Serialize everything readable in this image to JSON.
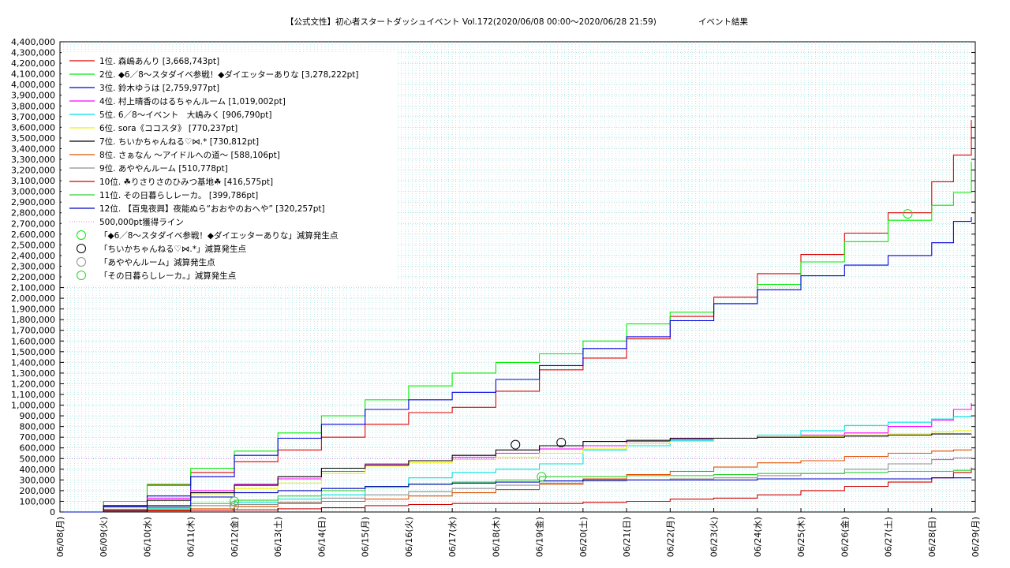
{
  "chart_data": {
    "type": "line",
    "title": "【公式文性】初心者スタートダッシュイベント Vol.172(2020/06/08 00:00～2020/06/28 21:59)",
    "subtitle": "イベント結果",
    "xlabel": "",
    "ylabel": "",
    "x_ticks": [
      "06/08(月)",
      "06/09(火)",
      "06/10(水)",
      "06/11(木)",
      "06/12(金)",
      "06/13(土)",
      "06/14(日)",
      "06/15(月)",
      "06/16(火)",
      "06/17(水)",
      "06/18(木)",
      "06/19(金)",
      "06/20(土)",
      "06/21(日)",
      "06/22(月)",
      "06/23(火)",
      "06/24(水)",
      "06/25(木)",
      "06/26(金)",
      "06/27(土)",
      "06/28(日)",
      "06/29(月)"
    ],
    "x_range_days": [
      0,
      21
    ],
    "ylim": [
      0,
      4400000
    ],
    "y_tick_step": 100000,
    "y_tick_labels": [
      "0",
      "100,000",
      "200,000",
      "300,000",
      "400,000",
      "500,000",
      "600,000",
      "700,000",
      "800,000",
      "900,000",
      "1,000,000",
      "1,100,000",
      "1,200,000",
      "1,300,000",
      "1,400,000",
      "1,500,000",
      "1,600,000",
      "1,700,000",
      "1,800,000",
      "1,900,000",
      "2,000,000",
      "2,100,000",
      "2,200,000",
      "2,300,000",
      "2,400,000",
      "2,500,000",
      "2,600,000",
      "2,700,000",
      "2,800,000",
      "2,900,000",
      "3,000,000",
      "3,100,000",
      "3,200,000",
      "3,300,000",
      "3,400,000",
      "3,500,000",
      "3,600,000",
      "3,700,000",
      "3,800,000",
      "3,900,000",
      "4,000,000",
      "4,100,000",
      "4,200,000",
      "4,300,000",
      "4,400,000"
    ],
    "grid": true,
    "legend_position": "top-left",
    "series": [
      {
        "name": "1位. 森嶋あんり [3,668,743pt]",
        "color": "#e00000",
        "x": [
          0,
          1,
          2,
          3,
          4,
          5,
          6,
          7,
          8,
          9,
          10,
          11,
          12,
          13,
          14,
          15,
          16,
          17,
          18,
          19,
          20,
          20.5,
          20.91
        ],
        "y": [
          0,
          100000,
          250000,
          370000,
          470000,
          580000,
          700000,
          820000,
          930000,
          980000,
          1130000,
          1330000,
          1440000,
          1620000,
          1830000,
          2010000,
          2230000,
          2410000,
          2610000,
          2800000,
          3090000,
          3340000,
          3668743
        ]
      },
      {
        "name": "2位. ◆6／8～スタダイベ参戦！◆ダイエッターありな [3,278,222pt]",
        "color": "#00ee00",
        "x": [
          0,
          1,
          2,
          3,
          4,
          5,
          6,
          7,
          8,
          9,
          10,
          11,
          12,
          13,
          14,
          15,
          16,
          17,
          18,
          19,
          20,
          20.5,
          20.91
        ],
        "y": [
          0,
          100000,
          260000,
          410000,
          570000,
          740000,
          900000,
          1050000,
          1180000,
          1300000,
          1400000,
          1480000,
          1600000,
          1760000,
          1870000,
          1950000,
          2130000,
          2340000,
          2530000,
          2730000,
          2870000,
          2990000,
          3278222
        ]
      },
      {
        "name": "3位. 鈴木ゆうは [2,759,977pt]",
        "color": "#0000e0",
        "x": [
          0,
          1,
          2,
          3,
          4,
          5,
          6,
          7,
          8,
          9,
          10,
          11,
          12,
          13,
          14,
          15,
          16,
          17,
          18,
          19,
          20,
          20.5,
          20.91
        ],
        "y": [
          0,
          50000,
          150000,
          330000,
          530000,
          690000,
          820000,
          960000,
          1050000,
          1120000,
          1240000,
          1370000,
          1530000,
          1640000,
          1790000,
          1950000,
          2080000,
          2210000,
          2310000,
          2400000,
          2520000,
          2720000,
          2759977
        ]
      },
      {
        "name": "4位. 村上晴香のはるちゃんルーム [1,019,002pt]",
        "color": "#ff00ff",
        "x": [
          0,
          1,
          2,
          3,
          4,
          5,
          6,
          7,
          8,
          9,
          10,
          11,
          12,
          13,
          14,
          15,
          16,
          17,
          18,
          19,
          20,
          20.5,
          20.91
        ],
        "y": [
          0,
          60000,
          130000,
          200000,
          260000,
          310000,
          380000,
          450000,
          480000,
          510000,
          550000,
          590000,
          620000,
          660000,
          680000,
          690000,
          700000,
          720000,
          740000,
          800000,
          860000,
          960000,
          1019002
        ]
      },
      {
        "name": "5位. 6／8～イベント　大嶋みく [906,790pt]",
        "color": "#00e0e0",
        "x": [
          0,
          1,
          2,
          3,
          4,
          5,
          6,
          7,
          8,
          9,
          10,
          11,
          12,
          13,
          14,
          15,
          16,
          17,
          18,
          19,
          20,
          20.5,
          20.91
        ],
        "y": [
          0,
          10000,
          30000,
          60000,
          90000,
          120000,
          160000,
          240000,
          320000,
          370000,
          400000,
          450000,
          580000,
          620000,
          670000,
          690000,
          720000,
          760000,
          810000,
          840000,
          870000,
          890000,
          906790
        ]
      },
      {
        "name": "6位. sora《ココスタ》 [770,237pt]",
        "color": "#f0f000",
        "x": [
          0,
          1,
          2,
          3,
          4,
          5,
          6,
          7,
          8,
          9,
          10,
          11,
          12,
          13,
          14,
          15,
          16,
          17,
          18,
          19,
          20,
          20.5,
          20.91
        ],
        "y": [
          0,
          40000,
          110000,
          170000,
          220000,
          270000,
          360000,
          430000,
          460000,
          490000,
          510000,
          550000,
          590000,
          640000,
          660000,
          690000,
          700000,
          710000,
          720000,
          730000,
          750000,
          760000,
          770237
        ]
      },
      {
        "name": "7位. ちいかちゃんねる♡⋈.* [730,812pt]",
        "color": "#000000",
        "x": [
          0,
          1,
          2,
          3,
          4,
          5,
          6,
          7,
          8,
          9,
          10,
          11,
          12,
          13,
          14,
          15,
          16,
          17,
          18,
          19,
          20,
          20.5,
          20.91
        ],
        "y": [
          0,
          60000,
          110000,
          180000,
          250000,
          330000,
          410000,
          440000,
          480000,
          530000,
          580000,
          620000,
          660000,
          670000,
          690000,
          690000,
          700000,
          700000,
          710000,
          720000,
          730000,
          730000,
          730812
        ]
      },
      {
        "name": "8位. さぁなん ～アイドルへの道～ [588,106pt]",
        "color": "#e05000",
        "x": [
          0,
          1,
          2,
          3,
          4,
          5,
          6,
          7,
          8,
          9,
          10,
          11,
          12,
          13,
          14,
          15,
          16,
          17,
          18,
          19,
          20,
          20.5,
          20.91
        ],
        "y": [
          0,
          10000,
          20000,
          30000,
          50000,
          80000,
          100000,
          120000,
          150000,
          180000,
          210000,
          260000,
          310000,
          350000,
          380000,
          420000,
          460000,
          480000,
          520000,
          550000,
          570000,
          580000,
          588106
        ]
      },
      {
        "name": "9位. あややんルーム [510,778pt]",
        "color": "#909090",
        "x": [
          0,
          1,
          2,
          3,
          4,
          5,
          6,
          7,
          8,
          9,
          10,
          11,
          12,
          13,
          14,
          15,
          16,
          17,
          18,
          19,
          20,
          20.5,
          20.91
        ],
        "y": [
          0,
          20000,
          50000,
          60000,
          70000,
          90000,
          130000,
          160000,
          190000,
          220000,
          250000,
          270000,
          290000,
          300000,
          310000,
          320000,
          340000,
          360000,
          400000,
          450000,
          490000,
          505000,
          510778
        ]
      },
      {
        "name": "10位. ☘りさりさのひみつ基地☘ [416,575pt]",
        "color": "#d00000",
        "x": [
          0,
          1,
          2,
          3,
          4,
          5,
          6,
          7,
          8,
          9,
          10,
          11,
          12,
          13,
          14,
          15,
          16,
          17,
          18,
          19,
          20,
          20.5,
          20.91
        ],
        "y": [
          0,
          5000,
          10000,
          15000,
          20000,
          30000,
          40000,
          60000,
          70000,
          80000,
          80000,
          80000,
          90000,
          100000,
          120000,
          130000,
          160000,
          200000,
          240000,
          280000,
          320000,
          370000,
          416575
        ]
      },
      {
        "name": "11位. その日暮らしレーカ。 [399,786pt]",
        "color": "#30d030",
        "x": [
          0,
          1,
          2,
          3,
          4,
          5,
          6,
          7,
          8,
          9,
          10,
          11,
          12,
          13,
          14,
          15,
          16,
          17,
          18,
          19,
          20,
          20.5,
          20.91
        ],
        "y": [
          0,
          20000,
          40000,
          80000,
          110000,
          150000,
          200000,
          230000,
          260000,
          280000,
          300000,
          330000,
          330000,
          340000,
          340000,
          350000,
          360000,
          360000,
          370000,
          380000,
          380000,
          390000,
          399786
        ]
      },
      {
        "name": "12位. 【百鬼夜興】夜能ぬら“おおやのおへや” [320,257pt]",
        "color": "#0000c0",
        "x": [
          0,
          1,
          2,
          3,
          4,
          5,
          6,
          7,
          8,
          9,
          10,
          11,
          12,
          13,
          14,
          15,
          16,
          17,
          18,
          19,
          20,
          20.5,
          20.91
        ],
        "y": [
          0,
          20000,
          60000,
          140000,
          180000,
          200000,
          220000,
          240000,
          260000,
          270000,
          280000,
          290000,
          300000,
          300000,
          300000,
          300000,
          310000,
          310000,
          310000,
          310000,
          320000,
          320000,
          320257
        ]
      }
    ],
    "reference_line": {
      "name": "500,000pt獲得ライン",
      "value": 500000,
      "color": "#e080e0"
    },
    "markers": [
      {
        "name": "「◆6／8～スタダイベ参戦！◆ダイエッターありな」減算発生点",
        "color": "#00ee00",
        "points": [
          {
            "x": 19.45,
            "y": 2790000
          }
        ]
      },
      {
        "name": "「ちいかちゃんねる♡⋈.*」減算発生点",
        "color": "#000000",
        "points": [
          {
            "x": 10.45,
            "y": 630000
          },
          {
            "x": 11.5,
            "y": 650000
          }
        ]
      },
      {
        "name": "「あややんルーム」減算発生点",
        "color": "#909090",
        "points": [
          {
            "x": 4.0,
            "y": 60000
          }
        ]
      },
      {
        "name": "「その日暮らしレーカ。」減算発生点",
        "color": "#30d030",
        "points": [
          {
            "x": 4.0,
            "y": 100000
          },
          {
            "x": 11.05,
            "y": 330000
          }
        ]
      }
    ]
  }
}
